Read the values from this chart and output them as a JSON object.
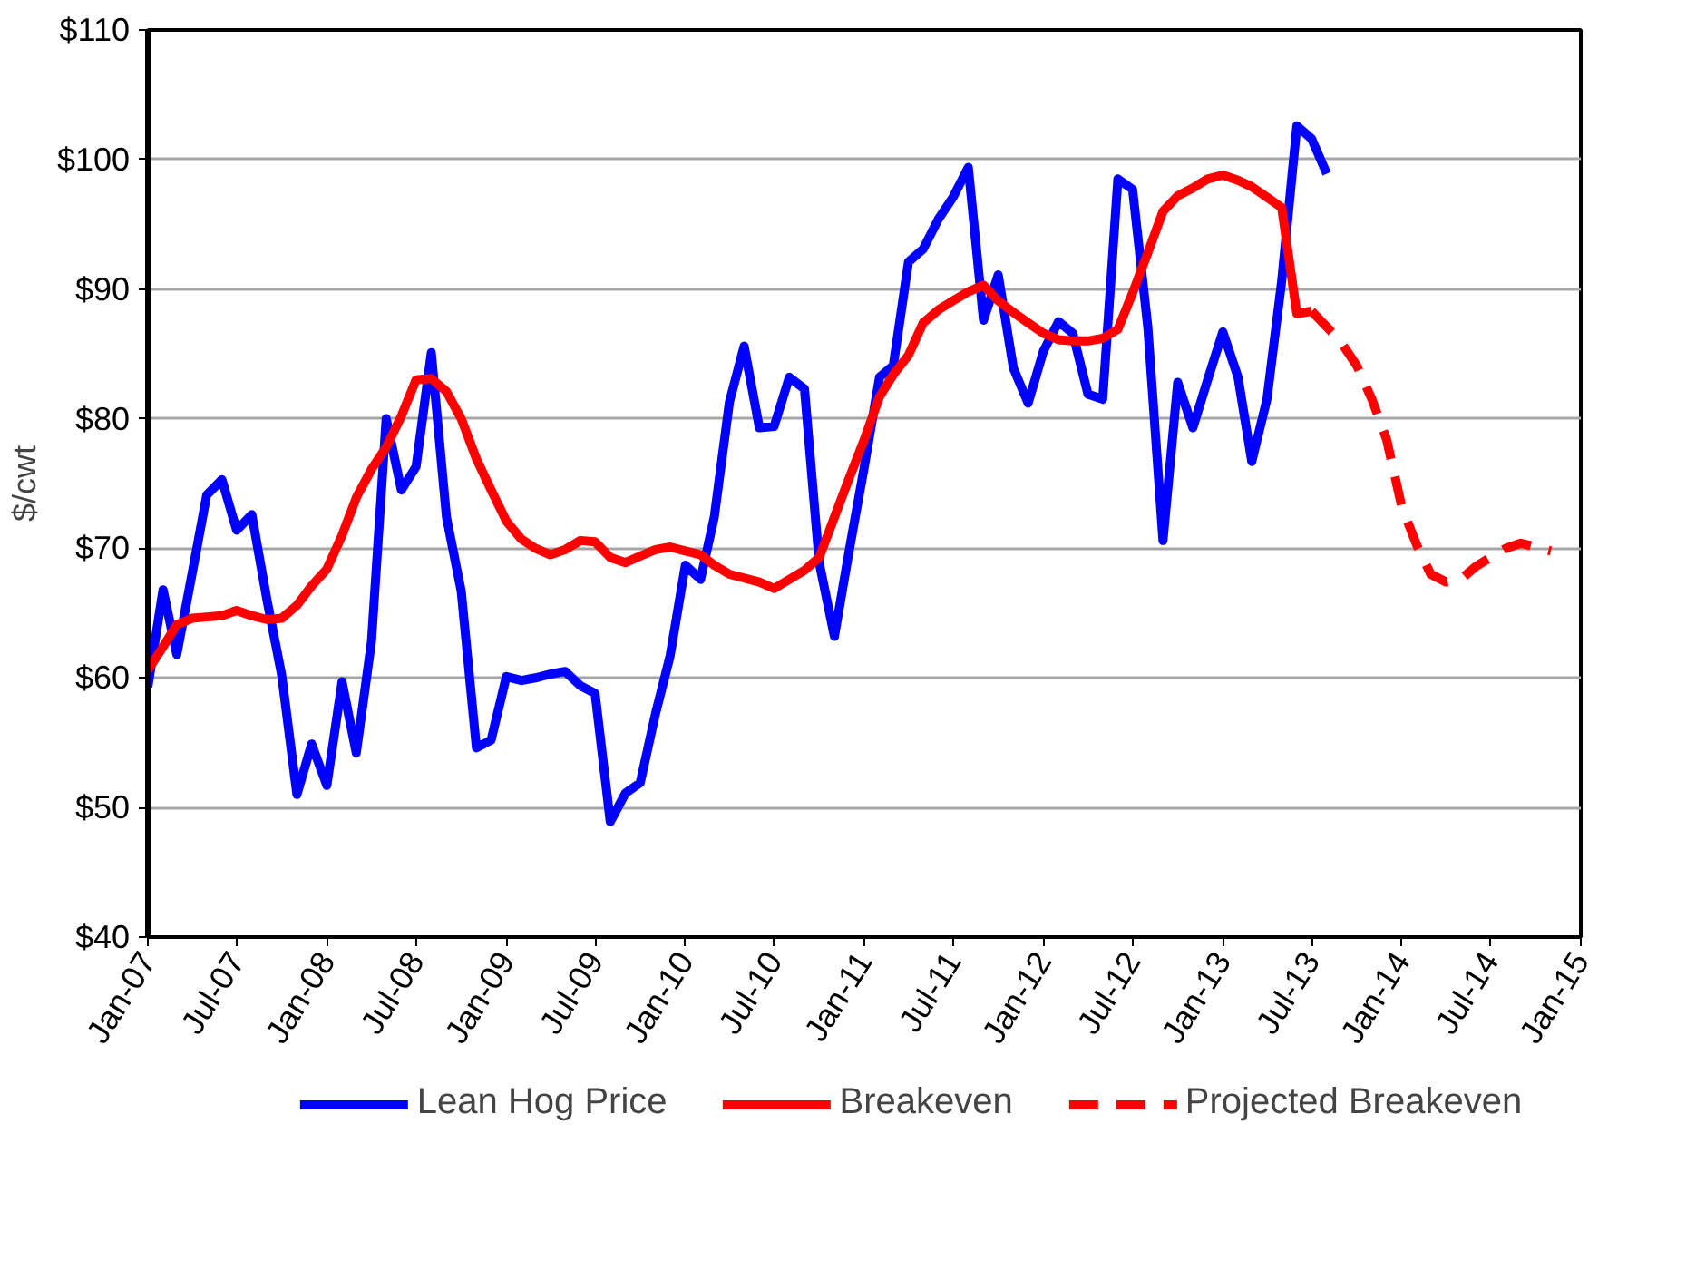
{
  "chart_data": {
    "type": "line",
    "ylabel": "$/cwt",
    "xlim": [
      "2007-01",
      "2015-01"
    ],
    "ylim": [
      40,
      110
    ],
    "xticks": [
      {
        "value": "2007-01",
        "label": "Jan-07"
      },
      {
        "value": "2007-07",
        "label": "Jul-07"
      },
      {
        "value": "2008-01",
        "label": "Jan-08"
      },
      {
        "value": "2008-07",
        "label": "Jul-08"
      },
      {
        "value": "2009-01",
        "label": "Jan-09"
      },
      {
        "value": "2009-07",
        "label": "Jul-09"
      },
      {
        "value": "2010-01",
        "label": "Jan-10"
      },
      {
        "value": "2010-07",
        "label": "Jul-10"
      },
      {
        "value": "2011-01",
        "label": "Jan-11"
      },
      {
        "value": "2011-07",
        "label": "Jul-11"
      },
      {
        "value": "2012-01",
        "label": "Jan-12"
      },
      {
        "value": "2012-07",
        "label": "Jul-12"
      },
      {
        "value": "2013-01",
        "label": "Jan-13"
      },
      {
        "value": "2013-07",
        "label": "Jul-13"
      },
      {
        "value": "2014-01",
        "label": "Jan-14"
      },
      {
        "value": "2014-07",
        "label": "Jul-14"
      },
      {
        "value": "2015-01",
        "label": "Jan-15"
      }
    ],
    "yticks": [
      {
        "value": 40,
        "label": "$40"
      },
      {
        "value": 50,
        "label": "$50"
      },
      {
        "value": 60,
        "label": "$60"
      },
      {
        "value": 70,
        "label": "$70"
      },
      {
        "value": 80,
        "label": "$80"
      },
      {
        "value": 90,
        "label": "$90"
      },
      {
        "value": 100,
        "label": "$100"
      },
      {
        "value": 110,
        "label": "$110"
      }
    ],
    "grid": "y",
    "legend": "bottom",
    "series": [
      {
        "name": "Lean Hog Price",
        "color": "#0000ff",
        "line_style": "solid",
        "x": [
          "2007-01",
          "2007-02",
          "2007-03",
          "2007-04",
          "2007-05",
          "2007-06",
          "2007-07",
          "2007-08",
          "2007-09",
          "2007-10",
          "2007-11",
          "2007-12",
          "2008-01",
          "2008-02",
          "2008-03",
          "2008-04",
          "2008-05",
          "2008-06",
          "2008-07",
          "2008-08",
          "2008-09",
          "2008-10",
          "2008-11",
          "2008-12",
          "2009-01",
          "2009-02",
          "2009-03",
          "2009-04",
          "2009-05",
          "2009-06",
          "2009-07",
          "2009-08",
          "2009-09",
          "2009-10",
          "2009-11",
          "2009-12",
          "2010-01",
          "2010-02",
          "2010-03",
          "2010-04",
          "2010-05",
          "2010-06",
          "2010-07",
          "2010-08",
          "2010-09",
          "2010-10",
          "2010-11",
          "2010-12",
          "2011-01",
          "2011-02",
          "2011-03",
          "2011-04",
          "2011-05",
          "2011-06",
          "2011-07",
          "2011-08",
          "2011-09",
          "2011-10",
          "2011-11",
          "2011-12",
          "2012-01",
          "2012-02",
          "2012-03",
          "2012-04",
          "2012-05",
          "2012-06",
          "2012-07",
          "2012-08",
          "2012-09",
          "2012-10",
          "2012-11",
          "2012-12",
          "2013-01",
          "2013-02",
          "2013-03",
          "2013-04",
          "2013-05",
          "2013-06",
          "2013-07",
          "2013-08"
        ],
        "values": [
          59.3,
          66.8,
          61.8,
          68.0,
          74.1,
          75.3,
          71.4,
          72.6,
          66.0,
          60.2,
          51.0,
          54.9,
          51.7,
          59.7,
          54.2,
          62.8,
          80.0,
          74.5,
          76.3,
          85.1,
          72.4,
          66.7,
          54.6,
          55.2,
          60.1,
          59.8,
          60.0,
          60.3,
          60.5,
          59.4,
          58.8,
          48.9,
          51.1,
          51.9,
          57.2,
          61.7,
          68.7,
          67.6,
          72.4,
          81.3,
          85.6,
          79.3,
          79.4,
          83.2,
          82.3,
          68.9,
          63.2,
          69.8,
          76.3,
          83.2,
          84.1,
          92.1,
          93.1,
          95.4,
          97.1,
          99.4,
          87.6,
          91.1,
          83.9,
          81.2,
          85.2,
          87.5,
          86.6,
          81.9,
          81.5,
          98.5,
          97.7,
          87.1,
          70.6,
          82.8,
          79.3,
          83.0,
          86.7,
          83.2,
          76.7,
          81.5,
          90.6,
          102.6,
          101.6,
          98.9
        ]
      },
      {
        "name": "Breakeven",
        "color": "#ff0000",
        "line_style": "solid",
        "x": [
          "2007-01",
          "2007-02",
          "2007-03",
          "2007-04",
          "2007-05",
          "2007-06",
          "2007-07",
          "2007-08",
          "2007-09",
          "2007-10",
          "2007-11",
          "2007-12",
          "2008-01",
          "2008-02",
          "2008-03",
          "2008-04",
          "2008-05",
          "2008-06",
          "2008-07",
          "2008-08",
          "2008-09",
          "2008-10",
          "2008-11",
          "2008-12",
          "2009-01",
          "2009-02",
          "2009-03",
          "2009-04",
          "2009-05",
          "2009-06",
          "2009-07",
          "2009-08",
          "2009-09",
          "2009-10",
          "2009-11",
          "2009-12",
          "2010-01",
          "2010-02",
          "2010-03",
          "2010-04",
          "2010-05",
          "2010-06",
          "2010-07",
          "2010-08",
          "2010-09",
          "2010-10",
          "2010-11",
          "2010-12",
          "2011-01",
          "2011-02",
          "2011-03",
          "2011-04",
          "2011-05",
          "2011-06",
          "2011-07",
          "2011-08",
          "2011-09",
          "2011-10",
          "2011-11",
          "2011-12",
          "2012-01",
          "2012-02",
          "2012-03",
          "2012-04",
          "2012-05",
          "2012-06",
          "2012-07",
          "2012-08",
          "2012-09",
          "2012-10",
          "2012-11",
          "2012-12",
          "2013-01",
          "2013-02",
          "2013-03",
          "2013-04",
          "2013-05",
          "2013-06",
          "2013-07"
        ],
        "values": [
          60.6,
          62.4,
          64.1,
          64.6,
          64.7,
          64.8,
          65.2,
          64.8,
          64.5,
          64.6,
          65.6,
          67.1,
          68.4,
          71.0,
          73.9,
          76.1,
          77.8,
          80.2,
          83.0,
          83.1,
          82.1,
          80.0,
          76.9,
          74.5,
          72.1,
          70.7,
          70.0,
          69.5,
          69.9,
          70.6,
          70.5,
          69.3,
          68.9,
          69.4,
          69.9,
          70.1,
          69.8,
          69.5,
          68.7,
          68.0,
          67.7,
          67.4,
          66.9,
          67.6,
          68.3,
          69.3,
          72.4,
          75.4,
          78.4,
          81.7,
          83.4,
          84.9,
          87.4,
          88.4,
          89.1,
          89.8,
          90.3,
          89.1,
          88.2,
          87.4,
          86.6,
          86.1,
          86.0,
          86.0,
          86.2,
          86.9,
          89.7,
          92.8,
          96.0,
          97.2,
          97.8,
          98.5,
          98.8,
          98.4,
          97.9,
          97.1,
          96.3,
          88.1,
          88.3
        ]
      },
      {
        "name": "Projected Breakeven",
        "color": "#ff0000",
        "line_style": "dashed",
        "x": [
          "2013-07",
          "2013-08",
          "2013-09",
          "2013-10",
          "2013-11",
          "2013-12",
          "2014-01",
          "2014-02",
          "2014-03",
          "2014-04",
          "2014-05",
          "2014-06",
          "2014-07",
          "2014-08",
          "2014-09",
          "2014-10",
          "2014-11"
        ],
        "values": [
          88.3,
          87.1,
          85.8,
          84.1,
          81.5,
          78.4,
          73.2,
          70.2,
          68.0,
          67.4,
          67.6,
          68.6,
          69.3,
          70.0,
          70.4,
          70.1,
          69.8
        ]
      }
    ]
  }
}
